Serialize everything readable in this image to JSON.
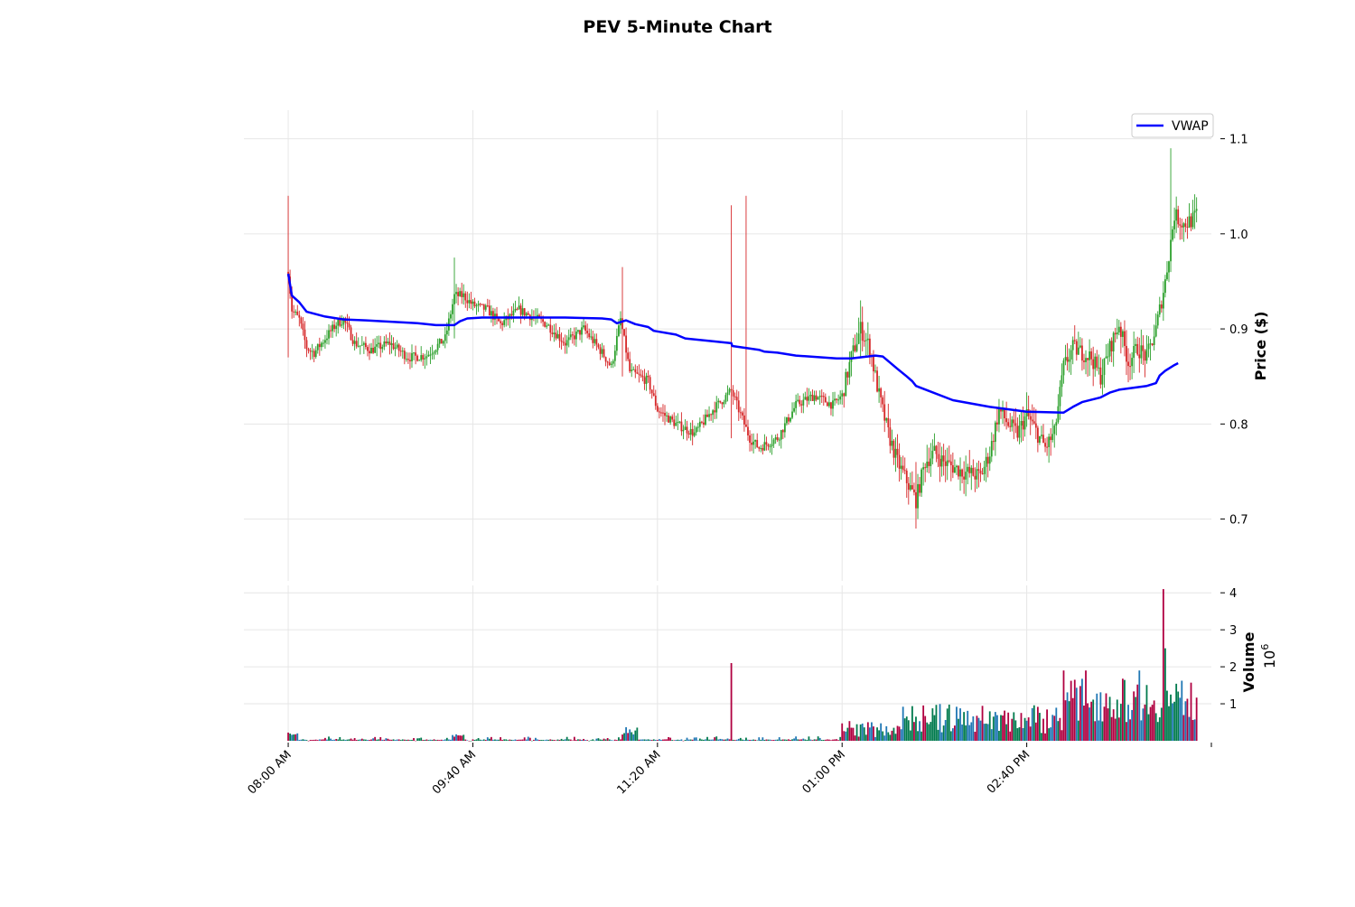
{
  "chart_data": {
    "type": "candlestick",
    "title": "PEV 5-Minute Chart",
    "price_panel": {
      "ylabel": "Price ($)",
      "ylim": [
        0.635,
        1.13
      ],
      "yticks": [
        0.7,
        0.8,
        0.9,
        1.0,
        1.1
      ],
      "ytick_labels": [
        "0.7",
        "0.8",
        "0.9",
        "1.0",
        "1.1"
      ]
    },
    "volume_panel": {
      "ylabel": "Volume",
      "scale_label": "10",
      "scale_exponent": "6",
      "ylim": [
        0,
        4.2
      ],
      "yticks": [
        1,
        2,
        3,
        4
      ],
      "ytick_labels": [
        "1",
        "2",
        "3",
        "4"
      ]
    },
    "x_axis": {
      "tick_labels": [
        "08:00 AM",
        "09:40 AM",
        "11:20 AM",
        "01:00 PM",
        "02:40 PM"
      ],
      "tick_positions_minutes": [
        0,
        100,
        200,
        300,
        400
      ],
      "xlim_minutes": [
        -24,
        500
      ]
    },
    "legend": {
      "position": "top-right",
      "entries": [
        {
          "label": "VWAP",
          "color": "#0000ff"
        }
      ]
    },
    "colors": {
      "up": "#2ca02c",
      "down": "#d62728",
      "vwap": "#0000ff",
      "vol_blue": "#1f77b4",
      "vol_green": "#007a4d",
      "vol_red": "#b00040"
    },
    "price_keypoints": [
      [
        0,
        0.96
      ],
      [
        2,
        0.92
      ],
      [
        6,
        0.91
      ],
      [
        10,
        0.88
      ],
      [
        14,
        0.875
      ],
      [
        20,
        0.89
      ],
      [
        26,
        0.905
      ],
      [
        30,
        0.91
      ],
      [
        36,
        0.885
      ],
      [
        45,
        0.878
      ],
      [
        55,
        0.885
      ],
      [
        65,
        0.87
      ],
      [
        75,
        0.872
      ],
      [
        85,
        0.89
      ],
      [
        90,
        0.935
      ],
      [
        95,
        0.935
      ],
      [
        100,
        0.925
      ],
      [
        108,
        0.92
      ],
      [
        115,
        0.905
      ],
      [
        125,
        0.92
      ],
      [
        140,
        0.905
      ],
      [
        150,
        0.885
      ],
      [
        160,
        0.9
      ],
      [
        170,
        0.875
      ],
      [
        175,
        0.86
      ],
      [
        180,
        0.91
      ],
      [
        185,
        0.855
      ],
      [
        195,
        0.845
      ],
      [
        200,
        0.815
      ],
      [
        210,
        0.8
      ],
      [
        220,
        0.79
      ],
      [
        230,
        0.815
      ],
      [
        240,
        0.835
      ],
      [
        245,
        0.81
      ],
      [
        250,
        0.785
      ],
      [
        255,
        0.775
      ],
      [
        265,
        0.785
      ],
      [
        275,
        0.82
      ],
      [
        285,
        0.83
      ],
      [
        295,
        0.82
      ],
      [
        300,
        0.83
      ],
      [
        305,
        0.87
      ],
      [
        310,
        0.9
      ],
      [
        315,
        0.88
      ],
      [
        320,
        0.83
      ],
      [
        325,
        0.79
      ],
      [
        330,
        0.76
      ],
      [
        340,
        0.72
      ],
      [
        345,
        0.76
      ],
      [
        350,
        0.77
      ],
      [
        355,
        0.76
      ],
      [
        365,
        0.75
      ],
      [
        375,
        0.745
      ],
      [
        380,
        0.77
      ],
      [
        385,
        0.815
      ],
      [
        390,
        0.8
      ],
      [
        395,
        0.79
      ],
      [
        400,
        0.81
      ],
      [
        410,
        0.775
      ],
      [
        415,
        0.79
      ],
      [
        420,
        0.86
      ],
      [
        425,
        0.88
      ],
      [
        435,
        0.87
      ],
      [
        440,
        0.85
      ],
      [
        445,
        0.88
      ],
      [
        450,
        0.905
      ],
      [
        455,
        0.865
      ],
      [
        460,
        0.88
      ],
      [
        465,
        0.87
      ],
      [
        470,
        0.9
      ],
      [
        475,
        0.95
      ],
      [
        480,
        1.02
      ],
      [
        485,
        1.01
      ],
      [
        490,
        1.015
      ],
      [
        492,
        1.02
      ]
    ],
    "price_spikes": [
      {
        "minute": 0,
        "high": 1.04,
        "low": 0.87
      },
      {
        "minute": 90,
        "high": 0.975,
        "low": 0.89
      },
      {
        "minute": 181,
        "high": 0.965,
        "low": 0.85
      },
      {
        "minute": 240,
        "high": 1.03,
        "low": 0.785
      },
      {
        "minute": 248,
        "high": 1.04,
        "low": 0.82
      },
      {
        "minute": 310,
        "high": 0.93,
        "low": 0.87
      },
      {
        "minute": 340,
        "high": 0.76,
        "low": 0.69
      },
      {
        "minute": 478,
        "high": 1.09,
        "low": 0.97
      }
    ],
    "vwap": [
      [
        0,
        0.958
      ],
      [
        2,
        0.935
      ],
      [
        6,
        0.928
      ],
      [
        10,
        0.918
      ],
      [
        20,
        0.913
      ],
      [
        30,
        0.91
      ],
      [
        42,
        0.909
      ],
      [
        70,
        0.906
      ],
      [
        80,
        0.904
      ],
      [
        90,
        0.904
      ],
      [
        93,
        0.908
      ],
      [
        97,
        0.911
      ],
      [
        105,
        0.912
      ],
      [
        150,
        0.912
      ],
      [
        170,
        0.911
      ],
      [
        175,
        0.91
      ],
      [
        178,
        0.906
      ],
      [
        183,
        0.909
      ],
      [
        188,
        0.905
      ],
      [
        195,
        0.902
      ],
      [
        198,
        0.898
      ],
      [
        210,
        0.894
      ],
      [
        215,
        0.89
      ],
      [
        230,
        0.887
      ],
      [
        240,
        0.885
      ],
      [
        240.5,
        0.882
      ],
      [
        255,
        0.878
      ],
      [
        258,
        0.876
      ],
      [
        265,
        0.875
      ],
      [
        275,
        0.872
      ],
      [
        297,
        0.869
      ],
      [
        305,
        0.869
      ],
      [
        318,
        0.872
      ],
      [
        322,
        0.871
      ],
      [
        330,
        0.858
      ],
      [
        335,
        0.85
      ],
      [
        338,
        0.845
      ],
      [
        340,
        0.84
      ],
      [
        360,
        0.825
      ],
      [
        380,
        0.818
      ],
      [
        400,
        0.813
      ],
      [
        420,
        0.812
      ],
      [
        425,
        0.818
      ],
      [
        430,
        0.823
      ],
      [
        440,
        0.828
      ],
      [
        445,
        0.833
      ],
      [
        450,
        0.836
      ],
      [
        465,
        0.84
      ],
      [
        470,
        0.843
      ],
      [
        472,
        0.851
      ],
      [
        475,
        0.856
      ],
      [
        480,
        0.862
      ],
      [
        482,
        0.864
      ]
    ],
    "volume_spikes": [
      {
        "minute": 240,
        "value": 2.1
      },
      {
        "minute": 420,
        "value": 1.9
      },
      {
        "minute": 432,
        "value": 1.9
      },
      {
        "minute": 461,
        "value": 1.9
      },
      {
        "minute": 474,
        "value": 4.1
      },
      {
        "minute": 475,
        "value": 2.5
      }
    ]
  }
}
